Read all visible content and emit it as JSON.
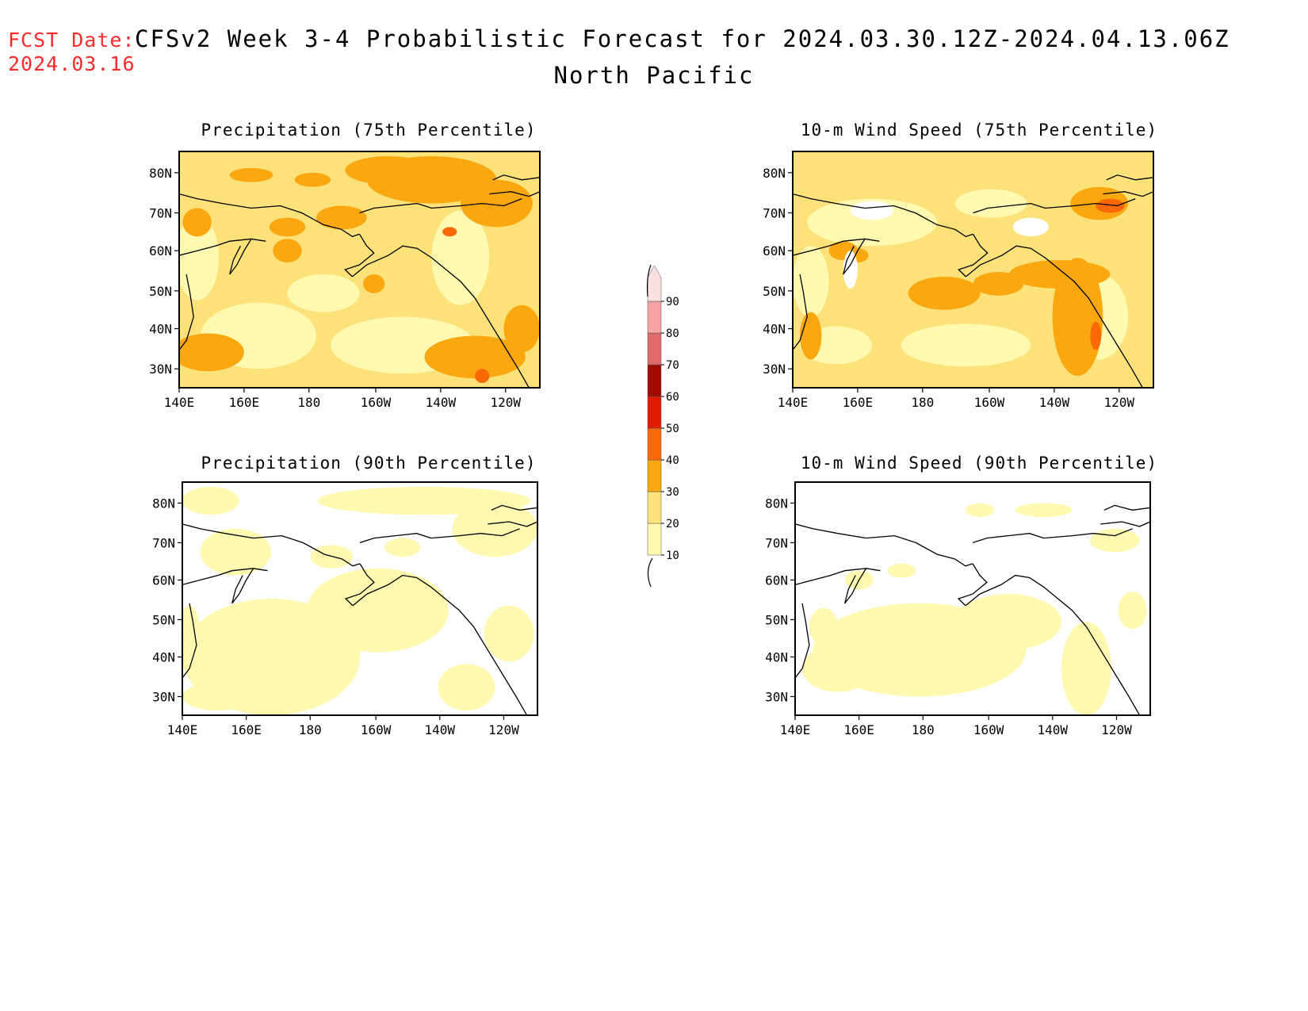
{
  "header": {
    "fcst_label": "FCST Date:",
    "fcst_date": "2024.03.16",
    "title": "CFSv2 Week 3-4 Probabilistic Forecast for 2024.03.30.12Z-2024.04.13.06Z",
    "region": "North Pacific"
  },
  "panels": [
    {
      "title": "Precipitation (75th Percentile)",
      "field": "precip75"
    },
    {
      "title": "10-m Wind Speed (75th Percentile)",
      "field": "wind75"
    },
    {
      "title": "Precipitation (90th Percentile)",
      "field": "precip90"
    },
    {
      "title": "10-m Wind Speed (90th Percentile)",
      "field": "wind90"
    }
  ],
  "axes": {
    "lat_ticks": [
      "80N",
      "70N",
      "60N",
      "50N",
      "40N",
      "30N"
    ],
    "lon_ticks": [
      "140E",
      "160E",
      "180",
      "160W",
      "140W",
      "120W"
    ]
  },
  "colorbar": {
    "levels": [
      "10",
      "20",
      "30",
      "40",
      "50",
      "60",
      "70",
      "80",
      "90"
    ],
    "colors": [
      "#fffab0",
      "#fde27a",
      "#fba70f",
      "#fb6806",
      "#e11b05",
      "#a10800",
      "#e06b6b",
      "#f4a4a4",
      "#fde0e0"
    ]
  }
}
